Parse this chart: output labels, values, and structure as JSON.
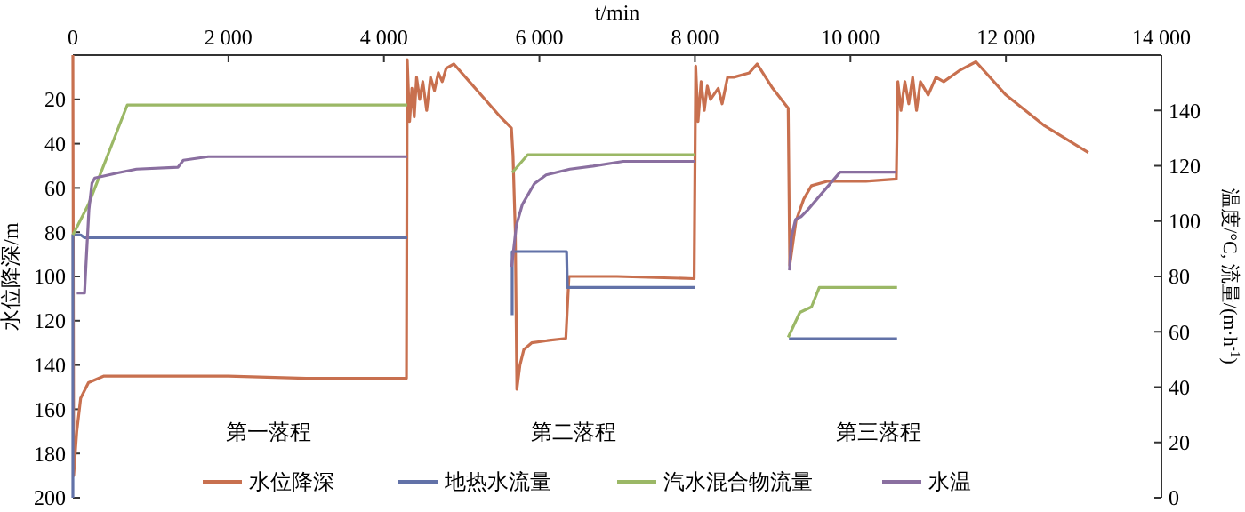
{
  "chart_data": {
    "type": "line",
    "xlabel": "t/min",
    "ylabel": "水位降深/m",
    "y2label": "温度/°C, 流量/(m·h$^{-1}$)",
    "xlim": [
      0,
      14000
    ],
    "xticks": [
      {
        "value": 0,
        "label": "0"
      },
      {
        "value": 2000,
        "label": "2 000"
      },
      {
        "value": 4000,
        "label": "4 000"
      },
      {
        "value": 6000,
        "label": "6 000"
      },
      {
        "value": 8000,
        "label": "8 000"
      },
      {
        "value": 10000,
        "label": "10 000"
      },
      {
        "value": 12000,
        "label": "12 000"
      },
      {
        "value": 14000,
        "label": "14 000"
      }
    ],
    "ylim": [
      200,
      0
    ],
    "yticks": [
      20,
      40,
      60,
      80,
      100,
      120,
      140,
      160,
      180,
      200
    ],
    "y2lim": [
      0,
      160
    ],
    "y2ticks": [
      0,
      20,
      40,
      60,
      80,
      100,
      120,
      140
    ],
    "legend": "bottom",
    "grid": false,
    "line_style": "solid",
    "annotations": [
      "第一落程",
      "第二落程",
      "第三落程"
    ],
    "series": [
      {
        "name": "水位降深",
        "color": "#c8704f",
        "axis": "y",
        "x": [
          0,
          10,
          50,
          100,
          200,
          400,
          1000,
          2000,
          3000,
          4290,
          4300,
          4330,
          4360,
          4390,
          4420,
          4460,
          4500,
          4550,
          4600,
          4650,
          4700,
          4750,
          4800,
          4900,
          5100,
          5300,
          5500,
          5640,
          5660,
          5690,
          5710,
          5750,
          5800,
          5900,
          6100,
          6340,
          6380,
          7000,
          7990,
          8010,
          8040,
          8080,
          8120,
          8160,
          8200,
          8300,
          8350,
          8420,
          8500,
          8700,
          8800,
          9000,
          9200,
          9220,
          9300,
          9400,
          9500,
          9700,
          10200,
          10590,
          10610,
          10650,
          10700,
          10750,
          10800,
          10850,
          10900,
          11000,
          11100,
          11200,
          11400,
          11615,
          12000,
          12500,
          13060
        ],
        "values": [
          0,
          190,
          170,
          155,
          148,
          145,
          145,
          145,
          146,
          146,
          2,
          30,
          15,
          28,
          10,
          20,
          12,
          25,
          10,
          16,
          8,
          12,
          6,
          4,
          12,
          20,
          28,
          33,
          45,
          80,
          151,
          140,
          133,
          130,
          129,
          128,
          100,
          100,
          101,
          5,
          30,
          12,
          25,
          14,
          20,
          15,
          22,
          10,
          10,
          8,
          4,
          15,
          24,
          95,
          75,
          65,
          59,
          57,
          57,
          56,
          12,
          25,
          12,
          22,
          10,
          25,
          12,
          18,
          10,
          12,
          7,
          3,
          18,
          32,
          44
        ]
      },
      {
        "name": "地热水流量",
        "color": "#6272a8",
        "axis": "y2",
        "x": [
          0,
          0,
          100,
          150,
          4300,
          4310,
          5650,
          5650,
          6350,
          6360,
          8000,
          8010,
          9210,
          10600
        ],
        "values": [
          0,
          95,
          95,
          94,
          94,
          null,
          66,
          89,
          89,
          76,
          76,
          null,
          57.5,
          57.5
        ]
      },
      {
        "name": "汽水混合物流量",
        "color": "#9bb866",
        "axis": "y2",
        "x": [
          0,
          200,
          700,
          4300,
          4310,
          5650,
          5850,
          8000,
          8010,
          9200,
          9350,
          9500,
          9600,
          10600
        ],
        "values": [
          95,
          106,
          142,
          142,
          null,
          117.5,
          124,
          124,
          null,
          58,
          67,
          69,
          76,
          76
        ]
      },
      {
        "name": "水温",
        "color": "#8a6fa0",
        "axis": "y2",
        "x": [
          50,
          150,
          167,
          206,
          245,
          282,
          589,
          818,
          1352,
          1420,
          1741,
          4300,
          4310,
          5643,
          5704,
          5780,
          5934,
          6087,
          6392,
          6690,
          7079,
          8000,
          8010,
          9217,
          9240,
          9295,
          9370,
          9446,
          9867,
          10591
        ],
        "values": [
          74,
          74,
          83.5,
          104,
          113.7,
          115.6,
          117.5,
          118.8,
          119.5,
          122,
          123.3,
          123.3,
          null,
          83.5,
          98.5,
          106,
          113.5,
          116.7,
          118.8,
          119.9,
          121.6,
          121.6,
          null,
          82.2,
          94.2,
          100.6,
          101.7,
          103.9,
          117.7,
          117.7
        ]
      }
    ]
  }
}
